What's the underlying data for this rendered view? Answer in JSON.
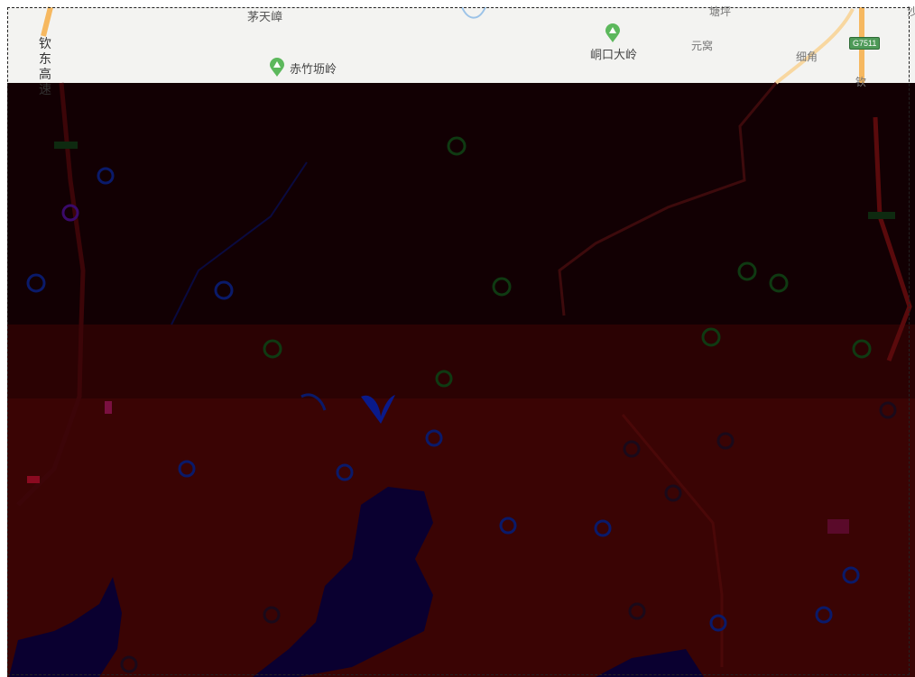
{
  "labels": {
    "maotian": "茅天嶂",
    "chizhu": "赤竹坜岭",
    "dongkou": "峒口大岭",
    "yuanwo": "元窝",
    "xijiao": "细角",
    "top_cut": "塘坪",
    "right_cut": "沙",
    "bottom_cut": "钦",
    "highway_vertical": "钦东高速",
    "shield": "G7511"
  },
  "colors": {
    "light_tile": "#f3f3f1",
    "dark_band_1": "#120003",
    "dark_band_2": "#2b0203",
    "dark_band_3": "#3a0404",
    "water": "#0a0030",
    "road": "#f6b860",
    "poi_green": "#5cb85c",
    "marker_green": "#0f3a12",
    "marker_blue": "#0a1a6a",
    "marker_dark": "#1a0a1a"
  },
  "icons": {
    "poi": "mountain-pin-icon",
    "shield": "highway-shield-icon"
  }
}
